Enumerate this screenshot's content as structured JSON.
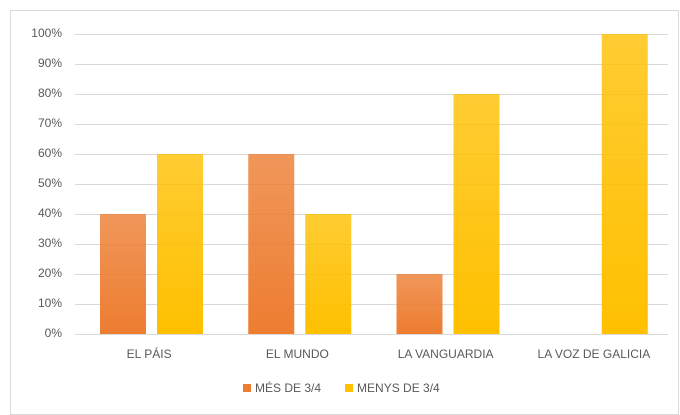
{
  "chart_data": {
    "type": "bar",
    "categories": [
      "EL PÁIS",
      "EL MUNDO",
      "LA VANGUARDIA",
      "LA VOZ DE GALICIA"
    ],
    "series": [
      {
        "name": "MÉS DE 3/4",
        "color": "#ed7d31",
        "values": [
          40,
          60,
          20,
          0
        ]
      },
      {
        "name": "MENYS DE 3/4",
        "color": "#ffc000",
        "values": [
          60,
          40,
          80,
          100
        ]
      }
    ],
    "ylim": [
      0,
      100
    ],
    "yticks": [
      {
        "value": 0,
        "label": "0%"
      },
      {
        "value": 10,
        "label": "10%"
      },
      {
        "value": 20,
        "label": "20%"
      },
      {
        "value": 30,
        "label": "30%"
      },
      {
        "value": 40,
        "label": "40%"
      },
      {
        "value": 50,
        "label": "50%"
      },
      {
        "value": 60,
        "label": "60%"
      },
      {
        "value": 70,
        "label": "70%"
      },
      {
        "value": 80,
        "label": "80%"
      },
      {
        "value": 90,
        "label": "90%"
      },
      {
        "value": 100,
        "label": "100%"
      }
    ],
    "grid": true,
    "legend": "bottom"
  }
}
